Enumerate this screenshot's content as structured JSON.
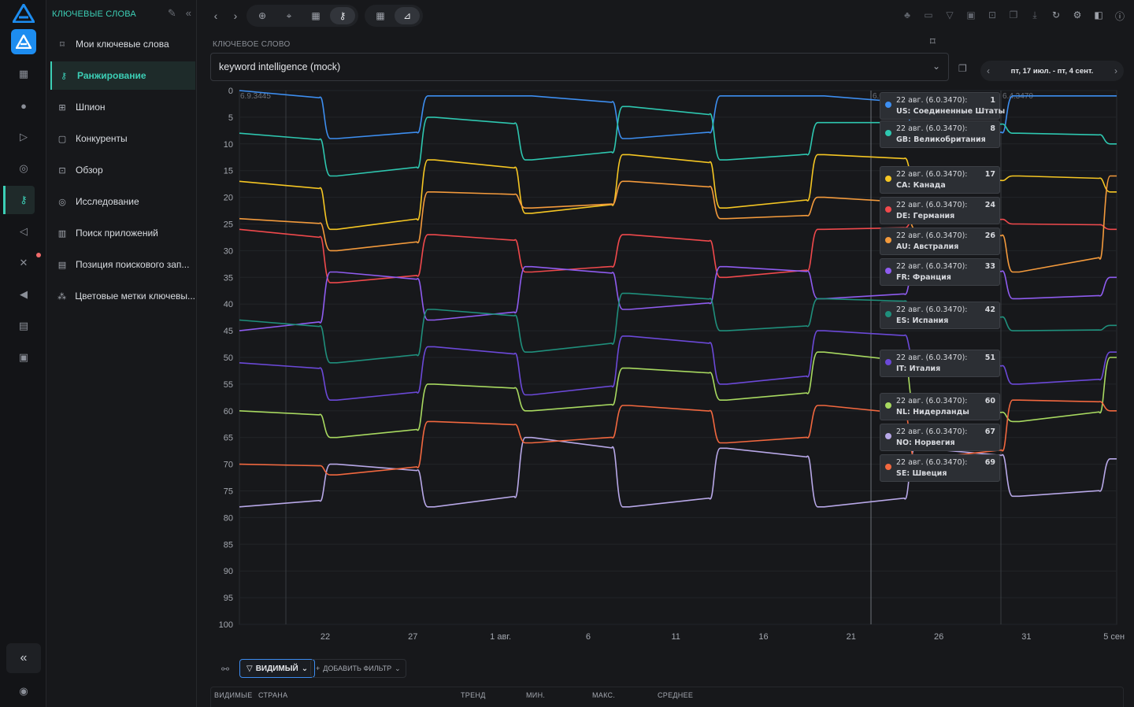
{
  "sidebar": {
    "title": "КЛЮЧЕВЫЕ СЛОВА",
    "items": [
      {
        "label": "Мои ключевые слова",
        "icon": "bookmark-icon"
      },
      {
        "label": "Ранжирование",
        "icon": "key-icon"
      },
      {
        "label": "Шпион",
        "icon": "spy-icon"
      },
      {
        "label": "Конкуренты",
        "icon": "competitors-icon"
      },
      {
        "label": "Обзор",
        "icon": "overview-icon"
      },
      {
        "label": "Исследование",
        "icon": "research-icon"
      },
      {
        "label": "Поиск приложений",
        "icon": "bar-chart-icon"
      },
      {
        "label": "Позиция поискового зап...",
        "icon": "document-icon"
      },
      {
        "label": "Цветовые метки ключевы...",
        "icon": "color-tags-icon"
      }
    ],
    "active_index": 1
  },
  "keyword": {
    "label": "КЛЮЧЕВОЕ СЛОВО",
    "value": "keyword intelligence (mock)"
  },
  "date_range": "пт, 17 июл. - пт, 4 сент.",
  "chart_data": {
    "type": "line",
    "ylim": [
      100,
      0
    ],
    "yticks": [
      0,
      5,
      10,
      15,
      20,
      25,
      30,
      35,
      40,
      45,
      50,
      55,
      60,
      65,
      70,
      75,
      80,
      85,
      90,
      95,
      100
    ],
    "xticks": [
      "22",
      "27",
      "1 авг.",
      "6",
      "11",
      "16",
      "21",
      "26",
      "31",
      "5 сен"
    ],
    "annotations": [
      "6.9.3445",
      "6.0.3470",
      "6.4.3470"
    ],
    "series": [
      {
        "code": "US",
        "name": "Соединенные Штаты",
        "color": "#3d8ef0",
        "values": [
          0,
          9,
          1,
          1,
          9,
          1,
          1,
          9,
          1,
          1
        ]
      },
      {
        "code": "GB",
        "name": "Великобритания",
        "color": "#2ec7b0",
        "values": [
          8,
          16,
          5,
          13,
          3,
          13,
          6,
          6,
          8,
          10
        ]
      },
      {
        "code": "CA",
        "name": "Канада",
        "color": "#f5c623",
        "values": [
          17,
          26,
          13,
          23,
          12,
          22,
          12,
          17,
          16,
          19
        ]
      },
      {
        "code": "DE",
        "name": "Германия",
        "color": "#f0494c",
        "values": [
          26,
          36,
          27,
          34,
          27,
          35,
          26,
          24,
          25,
          26
        ]
      },
      {
        "code": "AU",
        "name": "Австралия",
        "color": "#f39a3c",
        "values": [
          24,
          30,
          19,
          22,
          17,
          24,
          20,
          26,
          34,
          16
        ]
      },
      {
        "code": "FR",
        "name": "Франция",
        "color": "#8f5cf0",
        "values": [
          45,
          34,
          43,
          33,
          41,
          33,
          39,
          33,
          39,
          35
        ]
      },
      {
        "code": "ES",
        "name": "Испания",
        "color": "#1f8f7c",
        "values": [
          43,
          51,
          41,
          49,
          38,
          45,
          39,
          42,
          45,
          44
        ]
      },
      {
        "code": "IT",
        "name": "Италия",
        "color": "#6b49d8",
        "values": [
          51,
          58,
          48,
          57,
          46,
          55,
          45,
          51,
          55,
          49
        ]
      },
      {
        "code": "NL",
        "name": "Нидерланды",
        "color": "#a8d960",
        "values": [
          60,
          65,
          55,
          60,
          52,
          58,
          49,
          60,
          62,
          50
        ]
      },
      {
        "code": "NO",
        "name": "Норвегия",
        "color": "#b8a8e8",
        "values": [
          78,
          70,
          78,
          65,
          78,
          67,
          78,
          67,
          76,
          69
        ]
      },
      {
        "code": "SE",
        "name": "Швеция",
        "color": "#f2683f",
        "values": [
          70,
          72,
          62,
          66,
          59,
          66,
          59,
          69,
          58,
          60
        ]
      }
    ]
  },
  "tooltips": [
    {
      "date": "22 авг. (6.0.3470):",
      "value": "1",
      "label": "US: Соединенные Штаты",
      "color": "#3d8ef0"
    },
    {
      "date": "22 авг. (6.0.3470):",
      "value": "8",
      "label": "GB: Великобритания",
      "color": "#2ec7b0"
    },
    {
      "date": "22 авг. (6.0.3470):",
      "value": "17",
      "label": "CA: Канада",
      "color": "#f5c623"
    },
    {
      "date": "22 авг. (6.0.3470):",
      "value": "24",
      "label": "DE: Германия",
      "color": "#f0494c"
    },
    {
      "date": "22 авг. (6.0.3470):",
      "value": "26",
      "label": "AU: Австралия",
      "color": "#f39a3c"
    },
    {
      "date": "22 авг. (6.0.3470):",
      "value": "33",
      "label": "FR: Франция",
      "color": "#8f5cf0"
    },
    {
      "date": "22 авг. (6.0.3470):",
      "value": "42",
      "label": "ES: Испания",
      "color": "#1f8f7c"
    },
    {
      "date": "22 авг. (6.0.3470):",
      "value": "51",
      "label": "IT: Италия",
      "color": "#6b49d8"
    },
    {
      "date": "22 авг. (6.0.3470):",
      "value": "60",
      "label": "NL: Нидерланды",
      "color": "#a8d960"
    },
    {
      "date": "22 авг. (6.0.3470):",
      "value": "67",
      "label": "NO: Норвегия",
      "color": "#b8a8e8"
    },
    {
      "date": "22 авг. (6.0.3470):",
      "value": "69",
      "label": "SE: Швеция",
      "color": "#f2683f"
    }
  ],
  "filters": {
    "visible_label": "ВИДИМЫЙ",
    "add_label": "ДОБАВИТЬ ФИЛЬТР"
  },
  "table": {
    "columns": [
      "ВИДИМЫЕ",
      "СТРАНА",
      "ТРЕНД",
      "МИН.",
      "МАКС.",
      "СРЕДНЕЕ"
    ]
  },
  "colors": {
    "accent": "#3ccfb6",
    "brand": "#1d8df0"
  }
}
